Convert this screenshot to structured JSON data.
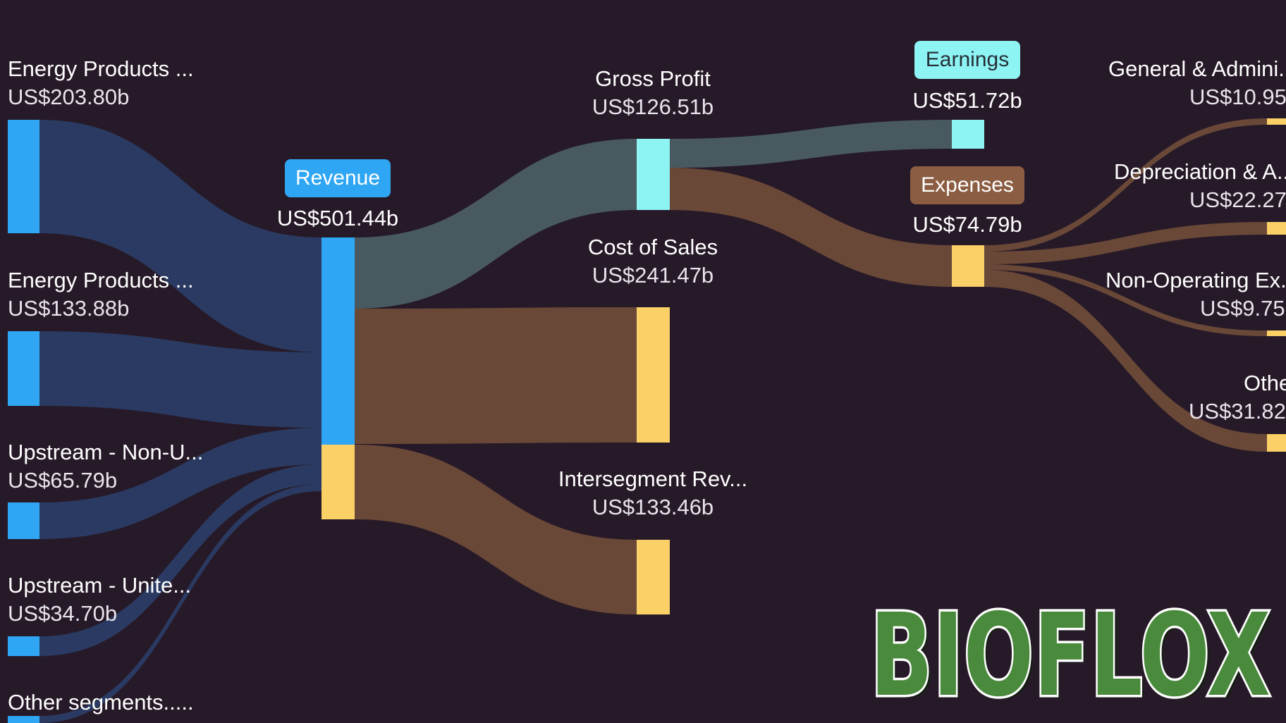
{
  "chart_data": {
    "type": "sankey",
    "units": "US$ billions",
    "nodes": [
      {
        "id": "seg1",
        "label": "Energy Products ...",
        "value_text": "US$203.80b",
        "value": 203.8,
        "kind": "revenue_segment",
        "color": "#2fa6f4"
      },
      {
        "id": "seg2",
        "label": "Energy Products ...",
        "value_text": "US$133.88b",
        "value": 133.88,
        "kind": "revenue_segment",
        "color": "#2fa6f4"
      },
      {
        "id": "seg3",
        "label": "Upstream - Non-U...",
        "value_text": "US$65.79b",
        "value": 65.79,
        "kind": "revenue_segment",
        "color": "#2fa6f4"
      },
      {
        "id": "seg4",
        "label": "Upstream - Unite...",
        "value_text": "US$34.70b",
        "value": 34.7,
        "kind": "revenue_segment",
        "color": "#2fa6f4"
      },
      {
        "id": "seg5",
        "label": "Other segments.....",
        "value_text": "",
        "kind": "revenue_segment",
        "color": "#2fa6f4"
      },
      {
        "id": "revenue",
        "label": "Revenue",
        "value_text": "US$501.44b",
        "value": 501.44,
        "kind": "revenue",
        "color": "#2fa6f4"
      },
      {
        "id": "gross",
        "label": "Gross Profit",
        "value_text": "US$126.51b",
        "value": 126.51,
        "kind": "profit",
        "color": "#8ef3f3"
      },
      {
        "id": "cos",
        "label": "Cost of Sales",
        "value_text": "US$241.47b",
        "value": 241.47,
        "kind": "cost",
        "color": "#fbd067"
      },
      {
        "id": "interseg",
        "label": "Intersegment Rev...",
        "value_text": "US$133.46b",
        "value": 133.46,
        "kind": "cost",
        "color": "#fbd067"
      },
      {
        "id": "earnings",
        "label": "Earnings",
        "value_text": "US$51.72b",
        "value": 51.72,
        "kind": "profit",
        "color": "#8ef3f3"
      },
      {
        "id": "expenses",
        "label": "Expenses",
        "value_text": "US$74.79b",
        "value": 74.79,
        "kind": "cost",
        "color": "#fbd067"
      },
      {
        "id": "ga",
        "label": "General & Admini...",
        "value_text": "US$10.95",
        "value": 10.95,
        "kind": "cost",
        "color": "#fbd067"
      },
      {
        "id": "da",
        "label": "Depreciation & A...",
        "value_text": "US$22.27",
        "value": 22.27,
        "kind": "cost",
        "color": "#fbd067"
      },
      {
        "id": "nonop",
        "label": "Non-Operating Ex...",
        "value_text": "US$9.75",
        "value": 9.75,
        "kind": "cost",
        "color": "#fbd067"
      },
      {
        "id": "other",
        "label": "Othe",
        "value_text": "US$31.82",
        "value": 31.82,
        "kind": "cost",
        "color": "#fbd067"
      }
    ],
    "links": [
      {
        "source": "seg1",
        "target": "revenue",
        "value": 203.8
      },
      {
        "source": "seg2",
        "target": "revenue",
        "value": 133.88
      },
      {
        "source": "seg3",
        "target": "revenue",
        "value": 65.79
      },
      {
        "source": "seg4",
        "target": "revenue",
        "value": 34.7
      },
      {
        "source": "seg5",
        "target": "revenue"
      },
      {
        "source": "revenue",
        "target": "gross",
        "value": 126.51
      },
      {
        "source": "revenue",
        "target": "cos",
        "value": 241.47
      },
      {
        "source": "revenue",
        "target": "interseg",
        "value": 133.46
      },
      {
        "source": "gross",
        "target": "earnings",
        "value": 51.72
      },
      {
        "source": "gross",
        "target": "expenses",
        "value": 74.79
      },
      {
        "source": "expenses",
        "target": "ga",
        "value": 10.95
      },
      {
        "source": "expenses",
        "target": "da",
        "value": 22.27
      },
      {
        "source": "expenses",
        "target": "nonop",
        "value": 9.75
      },
      {
        "source": "expenses",
        "target": "other",
        "value": 31.82
      }
    ],
    "colors": {
      "background": "#271a28",
      "revenue_flow": "#2a3a62",
      "profit_flow": "#485a60",
      "cost_flow": "#6a4838",
      "revenue_node": "#2fa6f4",
      "profit_node": "#8ef3f3",
      "cost_node": "#fbd067"
    }
  },
  "watermark": {
    "text": "BIOFLOX",
    "fill": "#4a8a3c",
    "outline": "#ffffff",
    "shadow": "#0e1f0c"
  }
}
